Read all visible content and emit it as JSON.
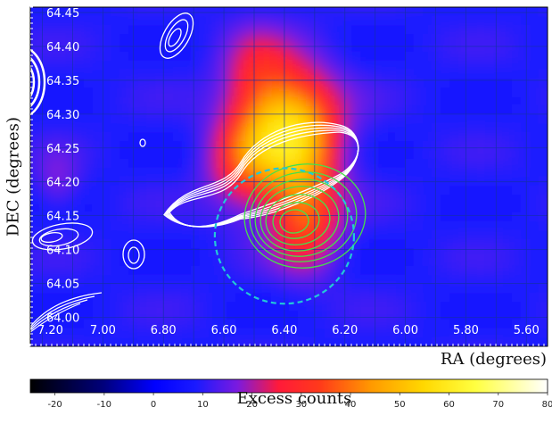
{
  "chart_data": {
    "type": "heatmap",
    "xlabel": "RA (degrees)",
    "ylabel": "DEC (degrees)",
    "x_ticks": [
      "7.00",
      "6.80",
      "6.60",
      "6.40",
      "6.20",
      "6.00",
      "5.80",
      "5.60"
    ],
    "y_ticks": [
      "64.45",
      "64.40",
      "64.35",
      "64.30",
      "64.25",
      "64.20",
      "64.15",
      "64.10",
      "64.05",
      "64.00"
    ],
    "corner_label": "7.20",
    "xlim": [
      7.24,
      5.53
    ],
    "ylim": [
      63.957,
      64.458
    ],
    "grid": true,
    "colorbar": {
      "label": "Excess counts",
      "ticks": [
        "-20",
        "-10",
        "0",
        "10",
        "20",
        "30",
        "40",
        "50",
        "60",
        "70",
        "80"
      ],
      "range": [
        -25,
        80
      ]
    },
    "emission": [
      {
        "ra": 6.38,
        "dec": 64.27,
        "sigma_ra": 0.11,
        "sigma_dec": 0.065,
        "amplitude": 45
      },
      {
        "ra": 6.33,
        "dec": 64.14,
        "sigma_ra": 0.08,
        "sigma_dec": 0.05,
        "amplitude": 22
      },
      {
        "ra": 6.55,
        "dec": 64.23,
        "sigma_ra": 0.08,
        "sigma_dec": 0.05,
        "amplitude": 16
      },
      {
        "ra": 6.5,
        "dec": 64.36,
        "sigma_ra": 0.08,
        "sigma_dec": 0.05,
        "amplitude": 12
      },
      {
        "ra": 7.15,
        "dec": 64.2,
        "sigma_ra": 0.05,
        "sigma_dec": 0.03,
        "amplitude": 8
      }
    ],
    "dashed_circle": {
      "ra": 6.4,
      "dec": 64.12,
      "radius_deg": 0.1,
      "color": "#22c8d8"
    },
    "contour_colors": {
      "white": "#ffffff",
      "green": "#46e04a",
      "cyan": "#22c8d8"
    }
  }
}
